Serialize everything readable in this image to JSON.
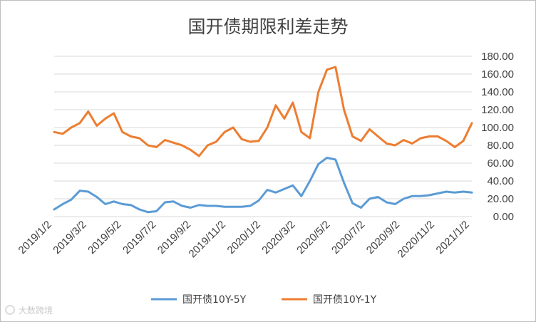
{
  "chart_data": {
    "type": "line",
    "title": "国开债期限利差走势",
    "xlabel": "",
    "ylabel": "",
    "ylim": [
      0,
      180
    ],
    "yticks": [
      "0.00",
      "20.00",
      "40.00",
      "60.00",
      "80.00",
      "100.00",
      "120.00",
      "140.00",
      "160.00",
      "180.00"
    ],
    "xticks": [
      "2019/1/2",
      "2019/3/2",
      "2019/5/2",
      "2019/7/2",
      "2019/9/2",
      "2019/11/2",
      "2020/1/2",
      "2020/3/2",
      "2020/5/2",
      "2020/7/2",
      "2020/9/2",
      "2020/11/2",
      "2021/1/2"
    ],
    "x": [
      "2019/1/2",
      "2019/1/16",
      "2019/2/1",
      "2019/2/15",
      "2019/3/1",
      "2019/3/15",
      "2019/4/1",
      "2019/4/15",
      "2019/5/1",
      "2019/5/15",
      "2019/6/1",
      "2019/6/15",
      "2019/7/1",
      "2019/7/15",
      "2019/8/1",
      "2019/8/15",
      "2019/9/1",
      "2019/9/15",
      "2019/10/1",
      "2019/10/15",
      "2019/11/1",
      "2019/11/15",
      "2019/12/1",
      "2019/12/15",
      "2020/1/1",
      "2020/1/15",
      "2020/2/1",
      "2020/2/15",
      "2020/3/1",
      "2020/3/15",
      "2020/4/1",
      "2020/4/15",
      "2020/5/1",
      "2020/5/15",
      "2020/6/1",
      "2020/6/15",
      "2020/7/1",
      "2020/7/15",
      "2020/8/1",
      "2020/8/15",
      "2020/9/1",
      "2020/9/15",
      "2020/10/1",
      "2020/10/15",
      "2020/11/1",
      "2020/11/15",
      "2020/12/1",
      "2020/12/15",
      "2021/1/1",
      "2021/1/8"
    ],
    "series": [
      {
        "name": "国开债10Y-5Y",
        "color": "#5b9bd5",
        "values": [
          8,
          14,
          19,
          29,
          28,
          22,
          14,
          17,
          14,
          13,
          8,
          5,
          6,
          16,
          17,
          12,
          10,
          13,
          12,
          12,
          11,
          11,
          11,
          12,
          18,
          30,
          27,
          31,
          35,
          23,
          40,
          59,
          66,
          64,
          38,
          15,
          10,
          20,
          22,
          16,
          14,
          20,
          23,
          23,
          24,
          26,
          28,
          27,
          28,
          27
        ]
      },
      {
        "name": "国开债10Y-1Y",
        "color": "#ed7d31",
        "values": [
          95,
          93,
          100,
          105,
          118,
          102,
          110,
          116,
          95,
          90,
          88,
          80,
          78,
          86,
          83,
          80,
          75,
          68,
          80,
          84,
          95,
          100,
          87,
          84,
          85,
          100,
          125,
          110,
          128,
          95,
          88,
          140,
          165,
          168,
          120,
          90,
          85,
          98,
          90,
          82,
          80,
          86,
          82,
          88,
          90,
          90,
          85,
          78,
          85,
          105
        ]
      }
    ],
    "legend_position": "bottom",
    "grid": true
  }
}
